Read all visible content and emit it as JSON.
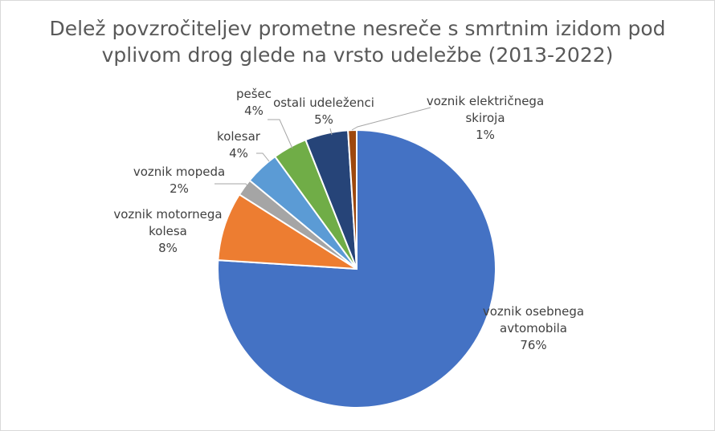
{
  "chart_data": {
    "type": "pie",
    "title_lines": [
      "Delež povzročiteljev prometne nesreče s smrtnim izidom pod",
      "vplivom drog glede na vrsto udeležbe (2013-2022)"
    ],
    "slices": [
      {
        "name_lines": [
          "voznik osebnega",
          "avtomobila"
        ],
        "value": 76,
        "label": "76%",
        "color": "#4472C4"
      },
      {
        "name_lines": [
          "voznik motornega",
          "kolesa"
        ],
        "value": 8,
        "label": "8%",
        "color": "#ED7D31"
      },
      {
        "name_lines": [
          "voznik mopeda"
        ],
        "value": 2,
        "label": "2%",
        "color": "#A5A5A5"
      },
      {
        "name_lines": [
          "kolesar"
        ],
        "value": 4,
        "label": "4%",
        "color": "#5B9BD5"
      },
      {
        "name_lines": [
          "pešec"
        ],
        "value": 4,
        "label": "4%",
        "color": "#70AD47"
      },
      {
        "name_lines": [
          "ostali udeleženci"
        ],
        "value": 5,
        "label": "5%",
        "color": "#264478"
      },
      {
        "name_lines": [
          "voznik električnega",
          "skiroja"
        ],
        "value": 1,
        "label": "1%",
        "color": "#9E480E"
      }
    ]
  }
}
